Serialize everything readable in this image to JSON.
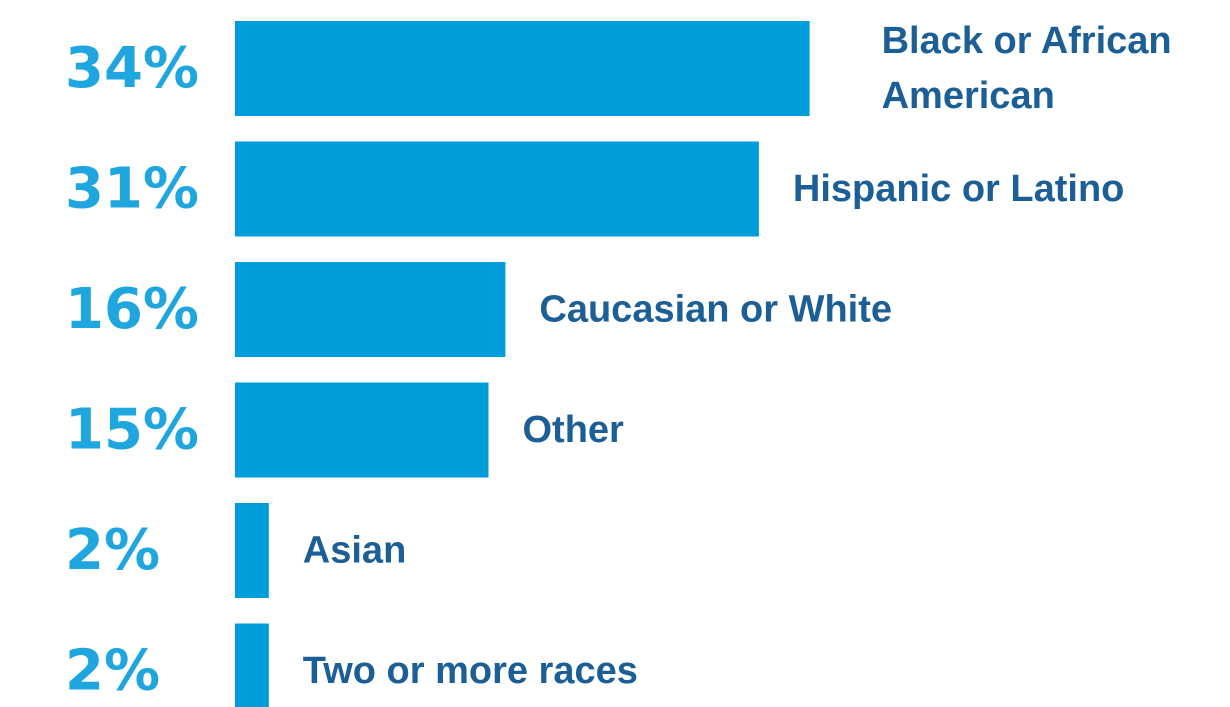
{
  "chart_data": {
    "type": "bar",
    "orientation": "horizontal",
    "categories": [
      [
        "Black or African",
        "American"
      ],
      [
        "Hispanic or Latino"
      ],
      [
        "Caucasian or White"
      ],
      [
        "Other"
      ],
      [
        "Asian"
      ],
      [
        "Two or more races"
      ]
    ],
    "values": [
      34,
      31,
      16,
      15,
      2,
      2
    ],
    "value_labels": [
      "34%",
      "31%",
      "16%",
      "15%",
      "2%",
      "2%"
    ],
    "title": "",
    "xlabel": "",
    "ylabel": "",
    "grid": false,
    "legend": "none",
    "colors": {
      "bar": "#009ddc",
      "value_label": "#1fa6df",
      "category_label": "#1c5e96"
    }
  }
}
